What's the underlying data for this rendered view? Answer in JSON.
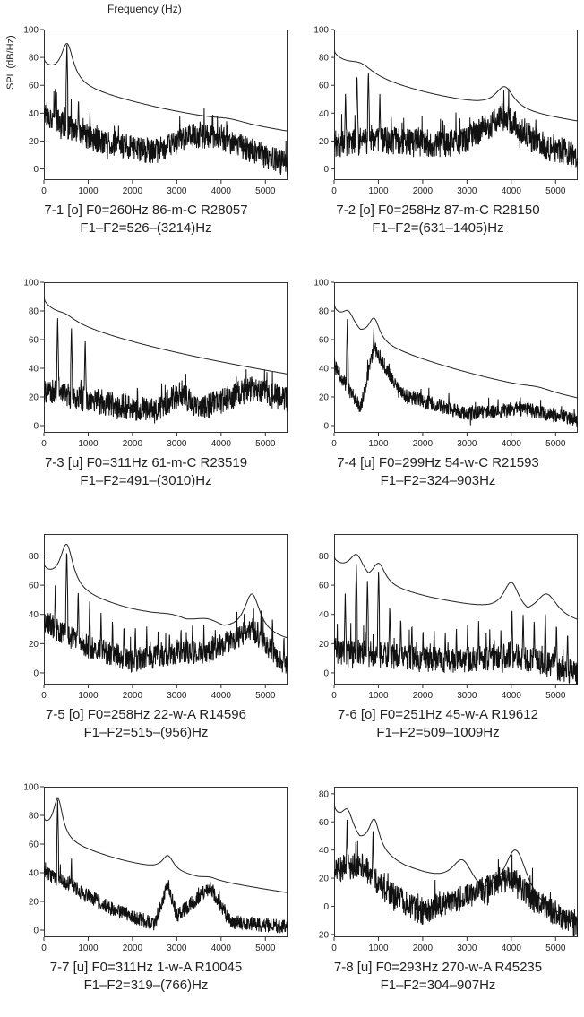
{
  "figure": {
    "x_axis_title": "Frequency (Hz)",
    "y_axis_title": "SPL (dB/Hz)"
  },
  "chart_data": [
    {
      "type": "line",
      "id": "7-1",
      "caption": [
        "7-1  [o]  F0=260Hz  86-m-C  R28057",
        "F1–F2=526–(3214)Hz"
      ],
      "xlim": [
        0,
        5500
      ],
      "ylim": [
        -8,
        100
      ],
      "yticks": [
        0,
        20,
        40,
        60,
        80,
        100
      ],
      "xticks": [
        0,
        1000,
        2000,
        3000,
        4000,
        5000
      ],
      "envelope": {
        "start": 77,
        "end": 27,
        "peaks": [
          [
            526,
            90,
            170
          ],
          [
            3300,
            37,
            500
          ],
          [
            4200,
            36,
            450
          ]
        ]
      },
      "spectrum": {
        "f0": 260,
        "harmonics": 5,
        "harm_base": [
          62,
          90,
          52,
          42,
          26
        ],
        "noise_levels": [
          [
            0,
            40
          ],
          [
            1000,
            22
          ],
          [
            2500,
            12
          ],
          [
            3300,
            24
          ],
          [
            4000,
            22
          ],
          [
            5500,
            3
          ]
        ],
        "spread": 9
      }
    },
    {
      "type": "line",
      "id": "7-2",
      "caption": [
        "7-2  [o]  F0=258Hz  87-m-C  R28150",
        "F1–F2=(631–1405)Hz"
      ],
      "xlim": [
        0,
        5500
      ],
      "ylim": [
        -8,
        100
      ],
      "yticks": [
        0,
        20,
        40,
        60,
        80,
        100
      ],
      "xticks": [
        0,
        1000,
        2000,
        3000,
        4000,
        5000
      ],
      "envelope": {
        "start": 84,
        "end": 34,
        "peaks": [
          [
            600,
            76,
            350
          ],
          [
            3850,
            59,
            260
          ]
        ]
      },
      "spectrum": {
        "f0": 258,
        "harmonics": 5,
        "harm_base": [
          56,
          70,
          72,
          55,
          38
        ],
        "noise_levels": [
          [
            0,
            18
          ],
          [
            1000,
            20
          ],
          [
            2800,
            18
          ],
          [
            3850,
            38
          ],
          [
            4600,
            18
          ],
          [
            5500,
            10
          ]
        ],
        "spread": 10
      }
    },
    {
      "type": "line",
      "id": "7-3",
      "caption": [
        "7-3  [u]  F0=311Hz  61-m-C  R23519",
        "F1–F2=491–(3010)Hz"
      ],
      "xlim": [
        0,
        5500
      ],
      "ylim": [
        -5,
        100
      ],
      "yticks": [
        0,
        20,
        40,
        60,
        80,
        100
      ],
      "xticks": [
        0,
        1000,
        2000,
        3000,
        4000,
        5000
      ],
      "envelope": {
        "start": 89,
        "end": 36,
        "peaks": [
          [
            491,
            78,
            250
          ],
          [
            3050,
            38,
            400
          ],
          [
            4750,
            39,
            500
          ]
        ]
      },
      "spectrum": {
        "f0": 311,
        "harmonics": 3,
        "harm_base": [
          76,
          70,
          62
        ],
        "noise_levels": [
          [
            0,
            25
          ],
          [
            1000,
            18
          ],
          [
            2500,
            10
          ],
          [
            3050,
            22
          ],
          [
            3600,
            12
          ],
          [
            4700,
            26
          ],
          [
            5500,
            18
          ]
        ],
        "spread": 9
      }
    },
    {
      "type": "line",
      "id": "7-4",
      "caption": [
        "7-4  [u]  F0=299Hz  54-w-C  R21593",
        "F1–F2=324–903Hz"
      ],
      "xlim": [
        0,
        5500
      ],
      "ylim": [
        -5,
        100
      ],
      "yticks": [
        0,
        20,
        40,
        60,
        80,
        100
      ],
      "xticks": [
        0,
        1000,
        2000,
        3000,
        4000,
        5000
      ],
      "envelope": {
        "start": 83,
        "end": 19,
        "peaks": [
          [
            324,
            80,
            170
          ],
          [
            903,
            75,
            150
          ],
          [
            3700,
            27,
            400
          ],
          [
            4600,
            27,
            400
          ]
        ]
      },
      "spectrum": {
        "f0": 299,
        "harmonics": 5,
        "harm_base": [
          75,
          18,
          70,
          40,
          30
        ],
        "noise_levels": [
          [
            0,
            42
          ],
          [
            600,
            12
          ],
          [
            903,
            55
          ],
          [
            1500,
            22
          ],
          [
            3000,
            8
          ],
          [
            4200,
            12
          ],
          [
            5500,
            4
          ]
        ],
        "spread": 5
      }
    },
    {
      "type": "line",
      "id": "7-5",
      "caption": [
        "7-5  [o]  F0=258Hz  22-w-A  R14596",
        "F1–F2=515–(956)Hz"
      ],
      "xlim": [
        0,
        5500
      ],
      "ylim": [
        -8,
        95
      ],
      "yticks": [
        0,
        20,
        40,
        60,
        80
      ],
      "xticks": [
        0,
        1000,
        2000,
        3000,
        4000,
        5000
      ],
      "envelope": {
        "start": 72,
        "end": 22,
        "peaks": [
          [
            515,
            88,
            180
          ],
          [
            2900,
            40,
            450
          ],
          [
            3700,
            37,
            400
          ],
          [
            4700,
            54,
            220
          ]
        ]
      },
      "spectrum": {
        "f0": 258,
        "harmonics": 21,
        "harm_base": [
          62,
          86,
          58,
          50,
          42,
          38,
          35,
          33,
          32,
          30,
          30,
          33,
          34,
          33,
          32,
          33,
          34,
          35,
          44,
          40,
          28
        ],
        "noise_levels": [
          [
            0,
            35
          ],
          [
            1000,
            18
          ],
          [
            2000,
            8
          ],
          [
            3000,
            14
          ],
          [
            3700,
            14
          ],
          [
            4700,
            30
          ],
          [
            5500,
            4
          ]
        ],
        "spread": 8
      }
    },
    {
      "type": "line",
      "id": "7-6",
      "caption": [
        "7-6  [o]  F0=251Hz  45-w-A  R19612",
        "F1–F2=509–1009Hz"
      ],
      "xlim": [
        0,
        5500
      ],
      "ylim": [
        -8,
        95
      ],
      "yticks": [
        0,
        20,
        40,
        60,
        80
      ],
      "xticks": [
        0,
        1000,
        2000,
        3000,
        4000,
        5000
      ],
      "envelope": {
        "start": 78,
        "end": 34,
        "peaks": [
          [
            509,
            81,
            200
          ],
          [
            1009,
            75,
            180
          ],
          [
            2800,
            43,
            350
          ],
          [
            4000,
            62,
            220
          ],
          [
            4800,
            54,
            300
          ]
        ]
      },
      "spectrum": {
        "f0": 251,
        "harmonics": 21,
        "harm_base": [
          55,
          76,
          65,
          72,
          48,
          40,
          36,
          32,
          32,
          30,
          32,
          34,
          36,
          30,
          30,
          44,
          42,
          38,
          44,
          36,
          30
        ],
        "noise_levels": [
          [
            0,
            15
          ],
          [
            2800,
            8
          ],
          [
            4000,
            12
          ],
          [
            5500,
            0
          ]
        ],
        "spread": 9
      }
    },
    {
      "type": "line",
      "id": "7-7",
      "caption": [
        "7-7  [u]  F0=311Hz  1-w-A  R10045",
        "F1–F2=319–(766)Hz"
      ],
      "xlim": [
        0,
        5500
      ],
      "ylim": [
        -5,
        100
      ],
      "yticks": [
        0,
        20,
        40,
        60,
        80,
        100
      ],
      "xticks": [
        0,
        1000,
        2000,
        3000,
        4000,
        5000
      ],
      "envelope": {
        "start": 75,
        "end": 26,
        "peaks": [
          [
            319,
            92,
            130
          ],
          [
            2800,
            52,
            160
          ],
          [
            3750,
            37,
            200
          ]
        ]
      },
      "spectrum": {
        "f0": 311,
        "harmonics": 3,
        "harm_base": [
          92,
          52,
          18
        ],
        "noise_levels": [
          [
            0,
            40
          ],
          [
            700,
            30
          ],
          [
            1500,
            15
          ],
          [
            2500,
            4
          ],
          [
            2800,
            32
          ],
          [
            3000,
            10
          ],
          [
            3750,
            30
          ],
          [
            4200,
            6
          ],
          [
            5500,
            2
          ]
        ],
        "spread": 5
      }
    },
    {
      "type": "line",
      "id": "7-8",
      "caption": [
        "7-8  [u]  F0=293Hz  270-w-A  R45235",
        "F1–F2=304–907Hz"
      ],
      "xlim": [
        0,
        5500
      ],
      "ylim": [
        -22,
        85
      ],
      "yticks": [
        -20,
        0,
        20,
        40,
        60,
        80
      ],
      "xticks": [
        0,
        1000,
        2000,
        3000,
        4000,
        5000
      ],
      "envelope": {
        "start": 70,
        "end": -12,
        "peaks": [
          [
            304,
            69,
            160
          ],
          [
            907,
            62,
            150
          ],
          [
            2900,
            33,
            300
          ],
          [
            4100,
            40,
            330
          ]
        ]
      },
      "spectrum": {
        "f0": 293,
        "harmonics": 3,
        "harm_base": [
          62,
          30,
          55
        ],
        "noise_levels": [
          [
            0,
            25
          ],
          [
            600,
            30
          ],
          [
            1200,
            10
          ],
          [
            2000,
            -5
          ],
          [
            2900,
            6
          ],
          [
            4000,
            20
          ],
          [
            4600,
            2
          ],
          [
            5500,
            -14
          ]
        ],
        "spread": 9
      }
    }
  ]
}
